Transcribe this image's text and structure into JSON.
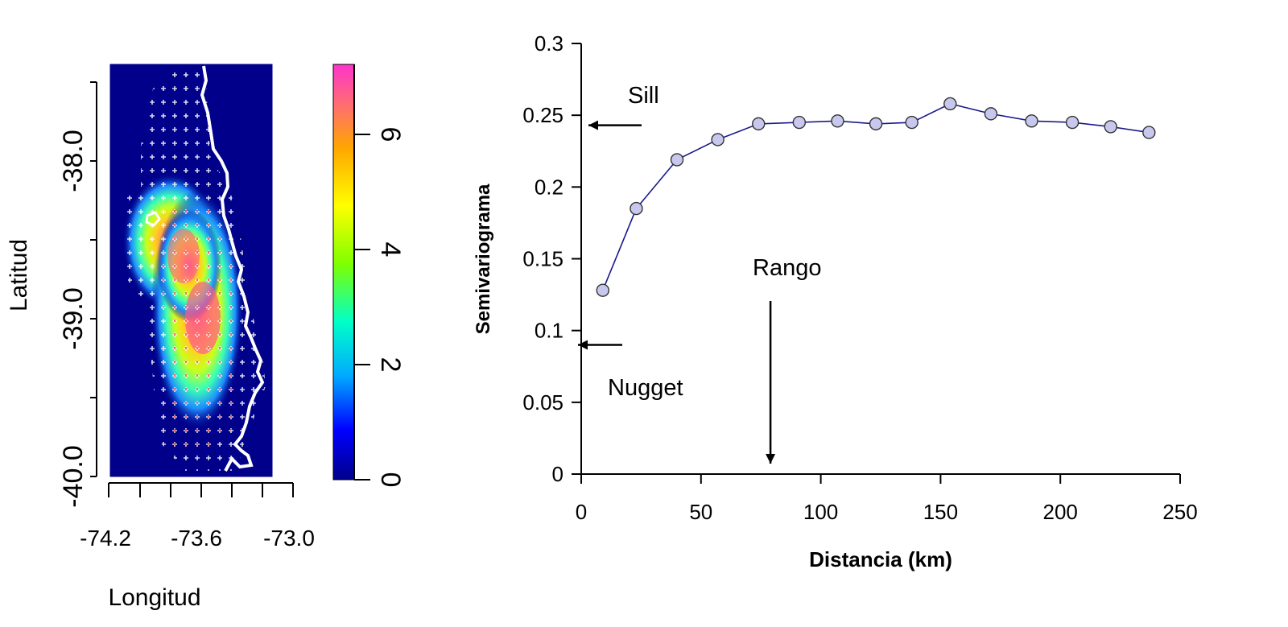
{
  "map": {
    "xlabel": "Longitud",
    "ylabel": "Latitud",
    "x_tick_labels": [
      "-74.2",
      "-73.6",
      "-73.0"
    ],
    "y_tick_labels": [
      "-38.0",
      "-39.0",
      "-40.0"
    ],
    "colorbar_tick_labels": [
      "0",
      "2",
      "4",
      "6"
    ],
    "colorbar_colors": [
      "#00008b",
      "#0000ff",
      "#00aaff",
      "#00ffc8",
      "#7fff00",
      "#ffff00",
      "#ffa500",
      "#ff6f6f",
      "#ff33cc"
    ],
    "background_color": "#00008b"
  },
  "chart_data": {
    "type": "line",
    "title": "",
    "xlabel": "Distancia (km)",
    "ylabel": "Semivariograma",
    "xlim": [
      0,
      250
    ],
    "ylim": [
      0,
      0.3
    ],
    "x_ticks": [
      0,
      50,
      100,
      150,
      200,
      250
    ],
    "y_ticks": [
      0,
      0.05,
      0.1,
      0.15,
      0.2,
      0.25,
      0.3
    ],
    "x_tick_labels": [
      "0",
      "50",
      "100",
      "150",
      "200",
      "250"
    ],
    "y_tick_labels": [
      "0",
      "0.05",
      "0.1",
      "0.15",
      "0.2",
      "0.25",
      "0.3"
    ],
    "grid": false,
    "line_color": "#1a1a8c",
    "marker_fill": "#c8c8ee",
    "series": [
      {
        "x": [
          9,
          23,
          40,
          57,
          74,
          91,
          107,
          123,
          138,
          154,
          171,
          188,
          205,
          221,
          237
        ],
        "y": [
          0.128,
          0.185,
          0.219,
          0.233,
          0.244,
          0.245,
          0.246,
          0.244,
          0.245,
          0.258,
          0.251,
          0.246,
          0.245,
          0.242,
          0.238
        ]
      }
    ],
    "annotations": {
      "sill": {
        "text": "Sill",
        "value": 0.243
      },
      "nugget": {
        "text": "Nugget",
        "value": 0.09
      },
      "rango": {
        "text": "Rango",
        "value": 79
      }
    }
  }
}
